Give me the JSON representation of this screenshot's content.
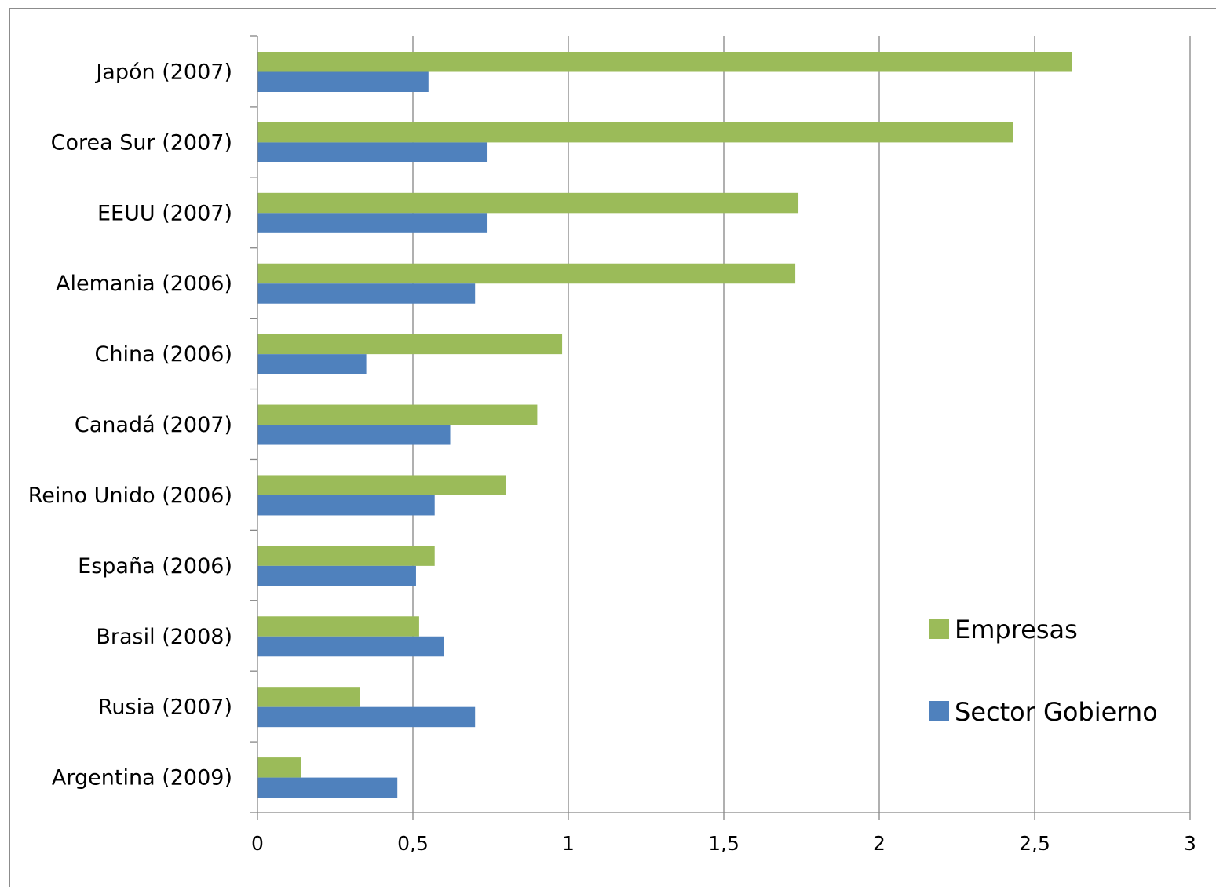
{
  "chart_data": {
    "type": "bar",
    "orientation": "horizontal",
    "categories": [
      "Japón (2007)",
      "Corea Sur (2007)",
      "EEUU (2007)",
      "Alemania (2006)",
      "China (2006)",
      "Canadá (2007)",
      "Reino Unido (2006)",
      "España (2006)",
      "Brasil (2008)",
      "Rusia (2007)",
      "Argentina (2009)"
    ],
    "series": [
      {
        "name": "Empresas",
        "color": "#9bbb59",
        "values": [
          2.62,
          2.43,
          1.74,
          1.73,
          0.98,
          0.9,
          0.8,
          0.57,
          0.52,
          0.33,
          0.14
        ]
      },
      {
        "name": "Sector Gobierno",
        "color": "#4f81bd",
        "values": [
          0.55,
          0.74,
          0.74,
          0.7,
          0.35,
          0.62,
          0.57,
          0.51,
          0.6,
          0.7,
          0.45
        ]
      }
    ],
    "xlim": [
      0,
      3
    ],
    "xticks": [
      0,
      0.5,
      1,
      1.5,
      2,
      2.5,
      3
    ],
    "xtick_labels": [
      "0",
      "0,5",
      "1",
      "1,5",
      "2",
      "2,5",
      "3"
    ],
    "grid": true,
    "legend_position": "bottom-right",
    "title": "",
    "xlabel": "",
    "ylabel": ""
  }
}
